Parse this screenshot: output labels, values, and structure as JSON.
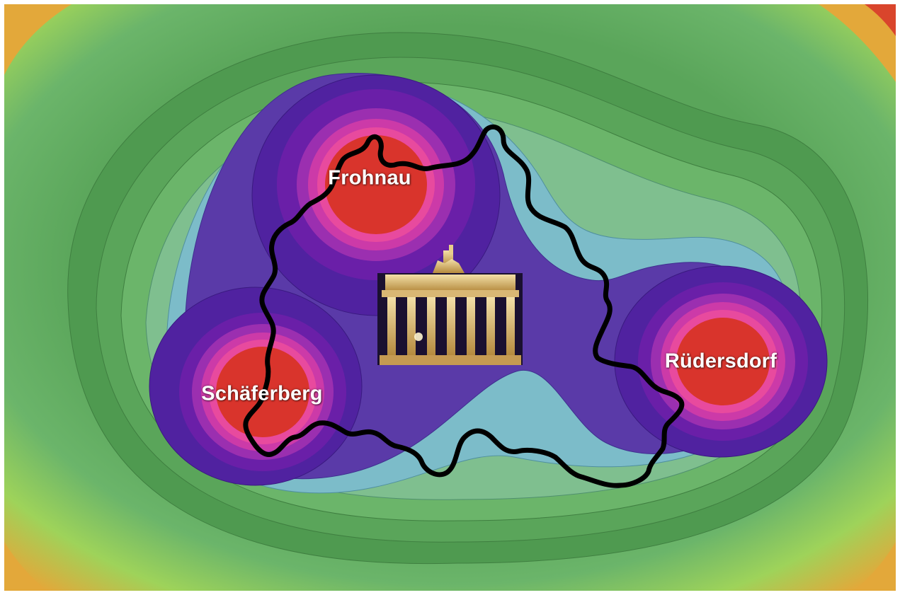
{
  "map": {
    "sites": [
      {
        "name": "Frohnau"
      },
      {
        "name": "Schäferberg"
      },
      {
        "name": "Rüdersdorf"
      }
    ],
    "landmark": {
      "icon": "brandenburg-gate-icon"
    },
    "boundary": {
      "name": "berlin-city-boundary",
      "color": "#000000"
    },
    "colors": {
      "core": "#d9342c",
      "ring_magenta_light": "#e84a9e",
      "ring_magenta": "#cc3aa8",
      "ring_violet": "#9b2fb0",
      "ring_purple": "#6a1fa8",
      "ring_indigo": "#5022a0",
      "ring_blue_violet": "#5a3aa8",
      "cyan": "#7cbcc9",
      "sea_green": "#7fbf8f",
      "green_light": "#6bb56a",
      "green": "#5aa55a",
      "green_dark": "#4f9a50",
      "yellow_green": "#9ed35a",
      "orange": "#e3a83a",
      "red_corner": "#d9452c"
    }
  }
}
